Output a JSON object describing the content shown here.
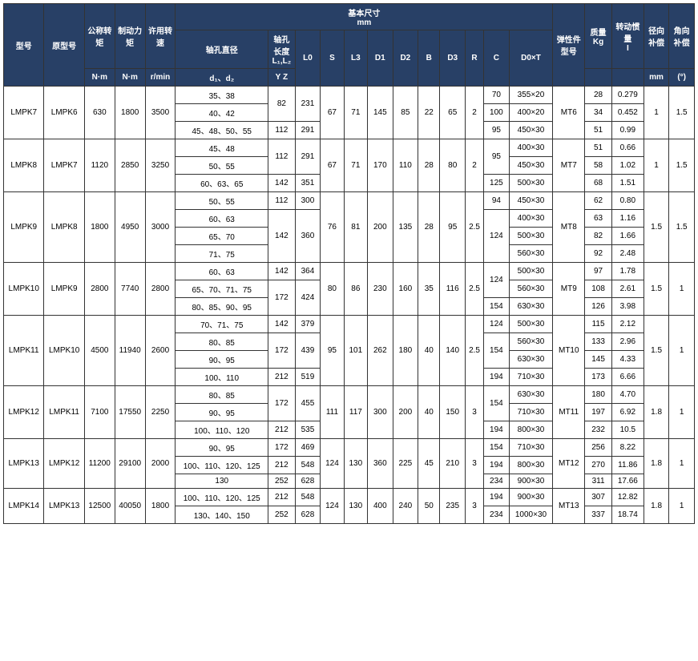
{
  "header": {
    "model": "型号",
    "orig_model": "原型号",
    "nominal_torque": "公称转矩",
    "brake_torque": "制动力矩",
    "allowed_speed": "许用转速",
    "basic_size": "基本尺寸",
    "basic_size_unit": "mm",
    "shaft_diameter": "轴孔直径",
    "shaft_length": "轴孔长度",
    "shaft_length_sub": "L₁,L₂",
    "l0": "L0",
    "s": "S",
    "l3": "L3",
    "d1": "D1",
    "d2": "D2",
    "b": "B",
    "d3": "D3",
    "r": "R",
    "c": "C",
    "d0t": "D0×T",
    "elastic_type": "弹性件型号",
    "mass": "质量",
    "mass_unit": "Kg",
    "inertia": "转动惯量",
    "inertia_sub": "I",
    "radial_comp": "径向补偿",
    "angular_comp": "角向补偿",
    "unit_nm": "N·m",
    "unit_rmin": "r/min",
    "d1d2": "d₁、d₂",
    "yz": "Y Z",
    "unit_mm": "mm",
    "unit_deg": "(°)"
  },
  "rows": [
    {
      "model": "LMPK7",
      "orig": "LMPK6",
      "nom": "630",
      "brake": "1800",
      "speed": "3500",
      "dia": [
        "35、38",
        "40、42",
        "45、48、50、55"
      ],
      "yz": [
        "82",
        "82",
        "112"
      ],
      "l0": [
        "231",
        "231",
        "291"
      ],
      "s": "67",
      "l3": "71",
      "d1": "145",
      "d2": "85",
      "b": "22",
      "d3": "65",
      "r": "2",
      "c": [
        "70",
        "100",
        "95"
      ],
      "d0t": [
        "355×20",
        "400×20",
        "450×30"
      ],
      "elastic": "MT6",
      "mass": [
        "28",
        "34",
        "51"
      ],
      "inertia": [
        "0.279",
        "0.452",
        "0.99"
      ],
      "radial": "1",
      "angular": "1.5"
    },
    {
      "model": "LMPK8",
      "orig": "LMPK7",
      "nom": "1120",
      "brake": "2850",
      "speed": "3250",
      "dia": [
        "45、48",
        "50、55",
        "60、63、65"
      ],
      "yz": [
        "112",
        "112",
        "142"
      ],
      "l0": [
        "291",
        "291",
        "351"
      ],
      "s": "67",
      "l3": "71",
      "d1": "170",
      "d2": "110",
      "b": "28",
      "d3": "80",
      "r": "2",
      "c": [
        "95",
        "95",
        "125"
      ],
      "d0t": [
        "400×30",
        "450×30",
        "500×30"
      ],
      "elastic": "MT7",
      "mass": [
        "51",
        "58",
        "68"
      ],
      "inertia": [
        "0.66",
        "1.02",
        "1.51"
      ],
      "radial": "1",
      "angular": "1.5"
    },
    {
      "model": "LMPK9",
      "orig": "LMPK8",
      "nom": "1800",
      "brake": "4950",
      "speed": "3000",
      "dia": [
        "50、55",
        "60、63",
        "65、70",
        "71、75"
      ],
      "yz": [
        "112",
        "142",
        "142",
        "142"
      ],
      "l0": [
        "300",
        "360",
        "360",
        "360"
      ],
      "s": "76",
      "l3": "81",
      "d1": "200",
      "d2": "135",
      "b": "28",
      "d3": "95",
      "r": "2.5",
      "c": [
        "94",
        "124",
        "124",
        "124"
      ],
      "d0t": [
        "450×30",
        "400×30",
        "500×30",
        "560×30"
      ],
      "elastic": "MT8",
      "mass": [
        "62",
        "63",
        "82",
        "92"
      ],
      "inertia": [
        "0.80",
        "1.16",
        "1.66",
        "2.48"
      ],
      "radial": "1.5",
      "angular": "1.5"
    },
    {
      "model": "LMPK10",
      "orig": "LMPK9",
      "nom": "2800",
      "brake": "7740",
      "speed": "2800",
      "dia": [
        "60、63",
        "65、70、71、75",
        "80、85、90、95"
      ],
      "yz": [
        "142",
        "172",
        "172"
      ],
      "l0": [
        "364",
        "424",
        "424"
      ],
      "s": "80",
      "l3": "86",
      "d1": "230",
      "d2": "160",
      "b": "35",
      "d3": "116",
      "r": "2.5",
      "c": [
        "124",
        "124",
        "154"
      ],
      "d0t": [
        "500×30",
        "560×30",
        "630×30"
      ],
      "elastic": "MT9",
      "mass": [
        "97",
        "108",
        "126"
      ],
      "inertia": [
        "1.78",
        "2.61",
        "3.98"
      ],
      "radial": "1.5",
      "angular": "1"
    },
    {
      "model": "LMPK11",
      "orig": "LMPK10",
      "nom": "4500",
      "brake": "11940",
      "speed": "2600",
      "dia": [
        "70、71、75",
        "80、85",
        "90、95",
        "100、110"
      ],
      "yz": [
        "142",
        "172",
        "172",
        "212"
      ],
      "l0": [
        "379",
        "439",
        "439",
        "519"
      ],
      "s": "95",
      "l3": "101",
      "d1": "262",
      "d2": "180",
      "b": "40",
      "d3": "140",
      "r": "2.5",
      "c": [
        "124",
        "154",
        "154",
        "194"
      ],
      "d0t": [
        "500×30",
        "560×30",
        "630×30",
        "710×30"
      ],
      "elastic": "MT10",
      "mass": [
        "115",
        "133",
        "145",
        "173"
      ],
      "inertia": [
        "2.12",
        "2.96",
        "4.33",
        "6.66"
      ],
      "radial": "1.5",
      "angular": "1"
    },
    {
      "model": "LMPK12",
      "orig": "LMPK11",
      "nom": "7100",
      "brake": "17550",
      "speed": "2250",
      "dia": [
        "80、85",
        "90、95",
        "100、110、120"
      ],
      "yz": [
        "172",
        "172",
        "212"
      ],
      "l0": [
        "455",
        "455",
        "535"
      ],
      "s": "111",
      "l3": "117",
      "d1": "300",
      "d2": "200",
      "b": "40",
      "d3": "150",
      "r": "3",
      "c": [
        "154",
        "154",
        "194"
      ],
      "d0t": [
        "630×30",
        "710×30",
        "800×30"
      ],
      "elastic": "MT11",
      "mass": [
        "180",
        "197",
        "232"
      ],
      "inertia": [
        "4.70",
        "6.92",
        "10.5"
      ],
      "radial": "1.8",
      "angular": "1"
    },
    {
      "model": "LMPK13",
      "orig": "LMPK12",
      "nom": "11200",
      "brake": "29100",
      "speed": "2000",
      "dia": [
        "90、95",
        "100、110、120、125",
        "130"
      ],
      "yz": [
        "172",
        "212",
        "252"
      ],
      "l0": [
        "469",
        "548",
        "628"
      ],
      "s": "124",
      "l3": "130",
      "d1": "360",
      "d2": "225",
      "b": "45",
      "d3": "210",
      "r": "3",
      "c": [
        "154",
        "194",
        "234"
      ],
      "d0t": [
        "710×30",
        "800×30",
        "900×30"
      ],
      "elastic": "MT12",
      "mass": [
        "256",
        "270",
        "311"
      ],
      "inertia": [
        "8.22",
        "11.86",
        "17.66"
      ],
      "radial": "1.8",
      "angular": "1"
    },
    {
      "model": "LMPK14",
      "orig": "LMPK13",
      "nom": "12500",
      "brake": "40050",
      "speed": "1800",
      "dia": [
        "100、110、120、125",
        "130、140、150"
      ],
      "yz": [
        "212",
        "252"
      ],
      "l0": [
        "548",
        "628"
      ],
      "s": "124",
      "l3": "130",
      "d1": "400",
      "d2": "240",
      "b": "50",
      "d3": "235",
      "r": "3",
      "c": [
        "194",
        "234"
      ],
      "d0t": [
        "900×30",
        "1000×30"
      ],
      "elastic": "MT13",
      "mass": [
        "307",
        "337"
      ],
      "inertia": [
        "12.82",
        "18.74"
      ],
      "radial": "1.8",
      "angular": "1"
    }
  ]
}
